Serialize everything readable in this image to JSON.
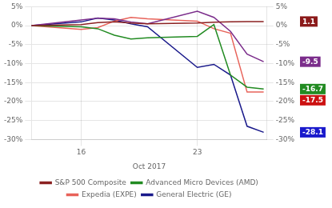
{
  "chart_data": {
    "type": "line",
    "xlabel": "Oct 2017",
    "x": [
      13,
      16,
      17,
      18,
      19,
      20,
      23,
      24,
      25,
      26,
      27
    ],
    "series": [
      {
        "name": "S&P 500 Composite",
        "color": "#8B2020",
        "values": [
          0,
          0.3,
          0.8,
          1.0,
          0.7,
          0.5,
          0.7,
          0.9,
          1.0,
          1.1,
          1.1
        ]
      },
      {
        "color": "#7B2D8B",
        "values": [
          0,
          1.5,
          2.0,
          1.8,
          1.0,
          0.5,
          3.8,
          2.2,
          -1.5,
          -7.5,
          -9.5
        ]
      },
      {
        "name": "Advanced Micro Devices (AMD)",
        "color": "#228B22",
        "values": [
          0,
          -0.3,
          -0.8,
          -2.5,
          -3.5,
          -3.2,
          -2.8,
          0.3,
          -13.0,
          -16.2,
          -16.7
        ]
      },
      {
        "name": "Expedia (EXPE)",
        "color": "#E8635A",
        "values": [
          0,
          -1.0,
          -0.5,
          1.2,
          2.2,
          1.8,
          1.2,
          -0.8,
          -2.0,
          -17.5,
          -17.5
        ]
      },
      {
        "name": "General Electric (GE)",
        "color": "#1A1A8B",
        "values": [
          0,
          1.0,
          2.0,
          1.5,
          0.5,
          -0.3,
          -11.0,
          -10.2,
          -13.0,
          -26.5,
          -28.1
        ]
      }
    ],
    "xlim": [
      13,
      27.2
    ],
    "xticks": [
      16,
      23
    ],
    "ylim": [
      -30,
      5
    ],
    "yticks": [
      {
        "value": 5,
        "label": "5%"
      },
      {
        "value": 0,
        "label": "0%"
      },
      {
        "value": -5,
        "label": "-5%"
      },
      {
        "value": -10,
        "label": "-10%"
      },
      {
        "value": -15,
        "label": "-15%"
      },
      {
        "value": -20,
        "label": "-20%"
      },
      {
        "value": -25,
        "label": "-25%"
      },
      {
        "value": -30,
        "label": "-30%"
      }
    ],
    "y2lim": [
      -30,
      5
    ],
    "y2ticks": [
      {
        "value": 5,
        "label": "5%"
      },
      {
        "value": 0,
        "label": "0%"
      },
      {
        "value": -5,
        "label": "-5%"
      },
      {
        "value": -10,
        "label": "-10%"
      },
      {
        "value": -15,
        "label": "-15%"
      },
      {
        "value": -20,
        "label": "-20%"
      },
      {
        "value": -25,
        "label": "-25%"
      },
      {
        "value": -30,
        "label": "-30%"
      }
    ],
    "annotations": [
      {
        "value": 1.1,
        "color": "#8B1A1A",
        "text": "1.1"
      },
      {
        "value": -9.5,
        "color": "#7B2D8B",
        "text": "-9.5"
      },
      {
        "value": -16.7,
        "color": "#228B22",
        "text": "-16.7"
      },
      {
        "value": -17.5,
        "color": "#CC1111",
        "text": "-17.5"
      },
      {
        "value": -28.1,
        "color": "#1A1ACC",
        "text": "-28.1"
      }
    ],
    "grid": true,
    "legend": "bottom"
  }
}
